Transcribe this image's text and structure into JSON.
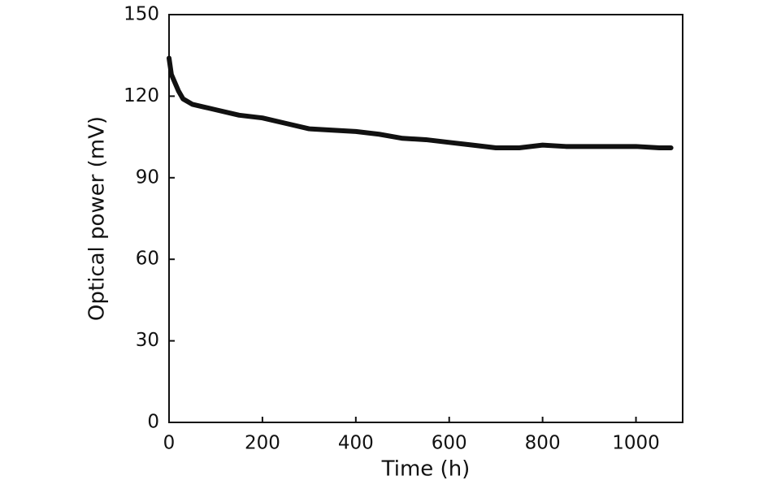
{
  "chart_data": {
    "type": "line",
    "x_label": "Time (h)",
    "y_label": "Optical power (mV)",
    "xlim": [
      0,
      1100
    ],
    "xticks": [
      0,
      200,
      400,
      600,
      800,
      1000
    ],
    "ylim": [
      0,
      150
    ],
    "yticks": [
      0,
      30,
      60,
      90,
      120,
      150
    ],
    "series": [
      {
        "color": "#111111",
        "x": [
          0,
          5,
          10,
          20,
          30,
          50,
          75,
          100,
          150,
          200,
          250,
          300,
          350,
          400,
          450,
          500,
          550,
          600,
          650,
          700,
          750,
          800,
          850,
          900,
          950,
          1000,
          1050,
          1075
        ],
        "values": [
          134,
          128,
          126,
          122,
          119,
          117,
          116,
          115,
          113,
          112,
          110,
          108,
          107.5,
          107,
          106,
          104.5,
          104,
          103,
          102,
          101,
          101,
          102,
          101.5,
          101.5,
          101.5,
          101.5,
          101,
          101
        ]
      }
    ]
  }
}
